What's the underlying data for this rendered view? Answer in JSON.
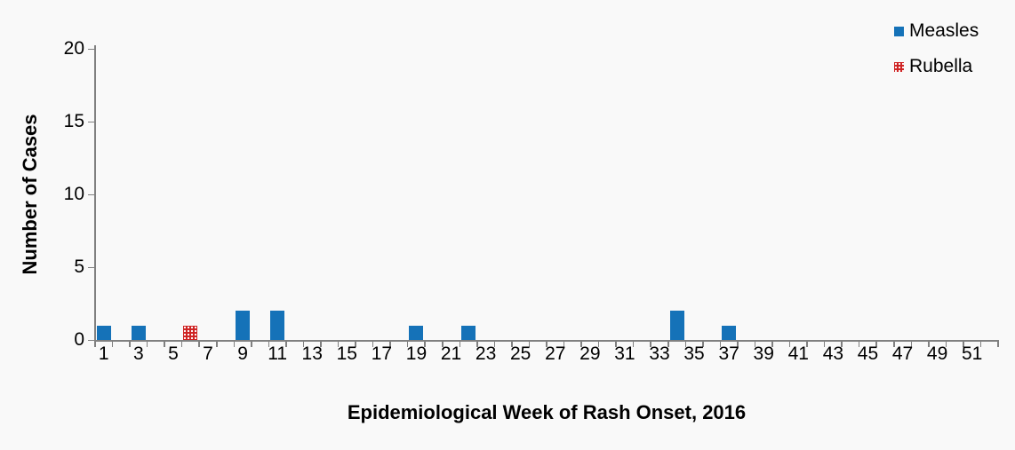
{
  "page": {
    "background": "#F9F9F9"
  },
  "chart_data": {
    "type": "bar",
    "xlabel": "Epidemiological Week of Rash Onset, 2016",
    "ylabel": "Number of Cases",
    "ylim": [
      0,
      20
    ],
    "yticks": [
      0,
      5,
      10,
      15,
      20
    ],
    "x_range": {
      "min": 1,
      "max": 52
    },
    "xtick_labels": [
      1,
      3,
      5,
      7,
      9,
      11,
      13,
      15,
      17,
      19,
      21,
      23,
      25,
      27,
      29,
      31,
      33,
      35,
      37,
      39,
      41,
      43,
      45,
      47,
      49,
      51
    ],
    "grid": false,
    "legend_position": "top-right",
    "axis_color": "#808080",
    "text_color": "#000000",
    "series": [
      {
        "name": "Measles",
        "color": "#1572B8",
        "fill": "solid",
        "points": [
          {
            "week": 1,
            "cases": 1
          },
          {
            "week": 3,
            "cases": 1
          },
          {
            "week": 9,
            "cases": 2
          },
          {
            "week": 11,
            "cases": 2
          },
          {
            "week": 19,
            "cases": 1
          },
          {
            "week": 22,
            "cases": 1
          },
          {
            "week": 34,
            "cases": 2
          },
          {
            "week": 37,
            "cases": 1
          }
        ]
      },
      {
        "name": "Rubella",
        "color": "#CE2222",
        "fill": "dotted",
        "points": [
          {
            "week": 6,
            "cases": 1
          }
        ]
      }
    ]
  }
}
